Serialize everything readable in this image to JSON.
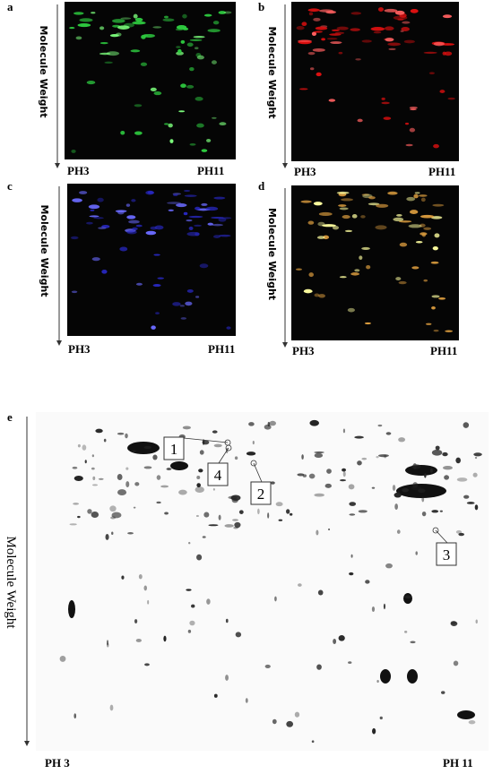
{
  "panels": [
    {
      "label": "a",
      "y_axis": "Molecule Weight",
      "x_start": "PH3",
      "x_end": "PH11"
    },
    {
      "label": "b",
      "y_axis": "Molecule Weight",
      "x_start": "PH3",
      "x_end": "PH11"
    },
    {
      "label": "c",
      "y_axis": "Molecule Weight",
      "x_start": "PH3",
      "x_end": "PH11"
    },
    {
      "label": "d",
      "y_axis": "Molecule Weight",
      "x_start": "PH3",
      "x_end": "PH11"
    }
  ],
  "panel_e": {
    "label": "e",
    "y_axis": "Molecule Weight",
    "x_start": "PH 3",
    "x_end": "PH 11",
    "spots": [
      "1",
      "4",
      "2",
      "3"
    ]
  }
}
